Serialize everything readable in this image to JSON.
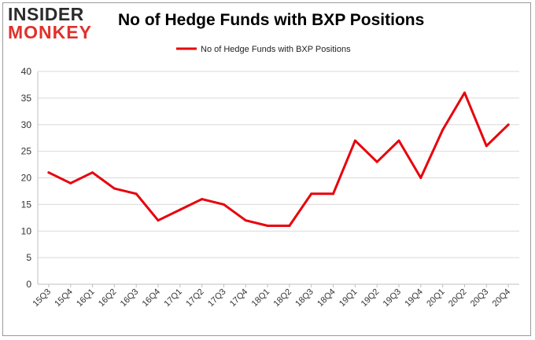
{
  "logo": {
    "line1": "INSIDER",
    "line2": "MONKEY"
  },
  "chart_data": {
    "type": "line",
    "title": "No of Hedge Funds with BXP Positions",
    "xlabel": "",
    "ylabel": "",
    "categories": [
      "15Q3",
      "15Q4",
      "16Q1",
      "16Q2",
      "16Q3",
      "16Q4",
      "17Q1",
      "17Q2",
      "17Q3",
      "17Q4",
      "18Q1",
      "18Q2",
      "18Q3",
      "18Q4",
      "19Q1",
      "19Q2",
      "19Q3",
      "19Q4",
      "20Q1",
      "20Q2",
      "20Q3",
      "20Q4"
    ],
    "series": [
      {
        "name": "No of Hedge Funds with BXP Positions",
        "color": "#e8000b",
        "values": [
          21,
          19,
          21,
          18,
          17,
          12,
          14,
          16,
          15,
          12,
          11,
          11,
          17,
          17,
          27,
          23,
          27,
          20,
          29,
          36,
          26,
          30
        ]
      }
    ],
    "ylim": [
      0,
      40
    ],
    "yticks": [
      0,
      5,
      10,
      15,
      20,
      25,
      30,
      35,
      40
    ],
    "grid": true,
    "legend": "top-center"
  }
}
